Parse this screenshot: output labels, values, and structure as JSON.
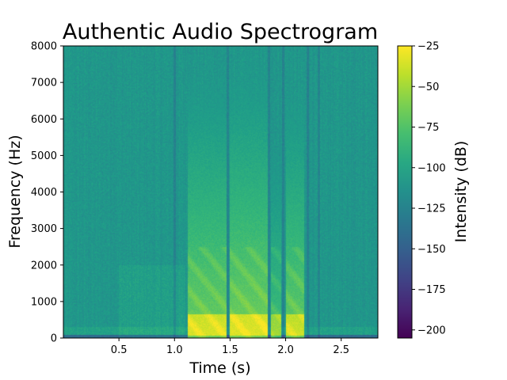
{
  "chart_data": {
    "type": "heatmap",
    "title": "Authentic Audio Spectrogram",
    "xlabel": "Time (s)",
    "ylabel": "Frequency (Hz)",
    "colorbar_label": "Intensity (dB)",
    "colormap": "viridis",
    "xlim": [
      0.0,
      2.83
    ],
    "ylim": [
      0,
      8000
    ],
    "clim": [
      -205,
      -25
    ],
    "x_ticks": [
      0.5,
      1.0,
      1.5,
      2.0,
      2.5
    ],
    "x_tick_labels": [
      "0.5",
      "1.0",
      "1.5",
      "2.0",
      "2.5"
    ],
    "y_ticks": [
      0,
      1000,
      2000,
      3000,
      4000,
      5000,
      6000,
      7000,
      8000
    ],
    "y_tick_labels": [
      "0",
      "1000",
      "2000",
      "3000",
      "4000",
      "5000",
      "6000",
      "7000",
      "8000"
    ],
    "colorbar_ticks": [
      -25,
      -50,
      -75,
      -100,
      -125,
      -150,
      -175,
      -200
    ],
    "colorbar_tick_labels": [
      "−25",
      "−50",
      "−75",
      "−100",
      "−125",
      "−150",
      "−175",
      "−200"
    ],
    "background_level_db": -110,
    "speech_segments": [
      {
        "start": 1.12,
        "end": 1.47,
        "peak_db": -35
      },
      {
        "start": 1.5,
        "end": 1.84,
        "peak_db": -33
      },
      {
        "start": 1.87,
        "end": 1.96,
        "peak_db": -50
      },
      {
        "start": 2.0,
        "end": 2.17,
        "peak_db": -38
      }
    ],
    "silence_gaps": [
      1.0,
      1.48,
      1.85,
      1.98,
      2.2,
      2.3
    ]
  }
}
